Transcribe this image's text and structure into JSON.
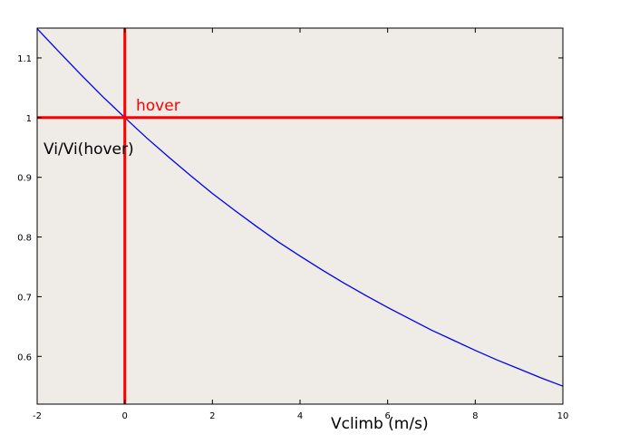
{
  "chart_data": {
    "type": "line",
    "xlabel": "Vclimb  (m/s)",
    "ylabel": "Vi/Vi(hover)",
    "xlim": [
      -2,
      10
    ],
    "ylim": [
      0.52,
      1.15
    ],
    "x_ticks": [
      -2,
      0,
      2,
      4,
      6,
      8,
      10
    ],
    "y_ticks": [
      0.6,
      0.7,
      0.8,
      0.9,
      1,
      1.1
    ],
    "y_tick_labels": [
      "0.6",
      "0.7",
      "0.8",
      "0.9",
      "1",
      "1.1"
    ],
    "grid": false,
    "plot_background": "#efebe7",
    "series": [
      {
        "color": "#0000ee",
        "x": [
          -2,
          -1.5,
          -1,
          -0.5,
          0,
          0.5,
          1,
          1.5,
          2,
          2.5,
          3,
          3.5,
          4,
          4.5,
          5,
          5.5,
          6,
          6.5,
          7,
          7.5,
          8,
          8.5,
          9,
          9.5,
          10
        ],
        "y": [
          1.149,
          1.11,
          1.072,
          1.035,
          1.0,
          0.966,
          0.934,
          0.903,
          0.873,
          0.845,
          0.818,
          0.792,
          0.768,
          0.745,
          0.723,
          0.702,
          0.682,
          0.663,
          0.644,
          0.627,
          0.61,
          0.594,
          0.579,
          0.564,
          0.55
        ]
      }
    ],
    "reference_lines": [
      {
        "orientation": "horizontal",
        "value": 1,
        "color": "#ff0000"
      },
      {
        "orientation": "vertical",
        "value": 0,
        "color": "#ff0000"
      }
    ],
    "annotations": [
      {
        "text": "hover",
        "color": "#ff0000"
      }
    ]
  }
}
